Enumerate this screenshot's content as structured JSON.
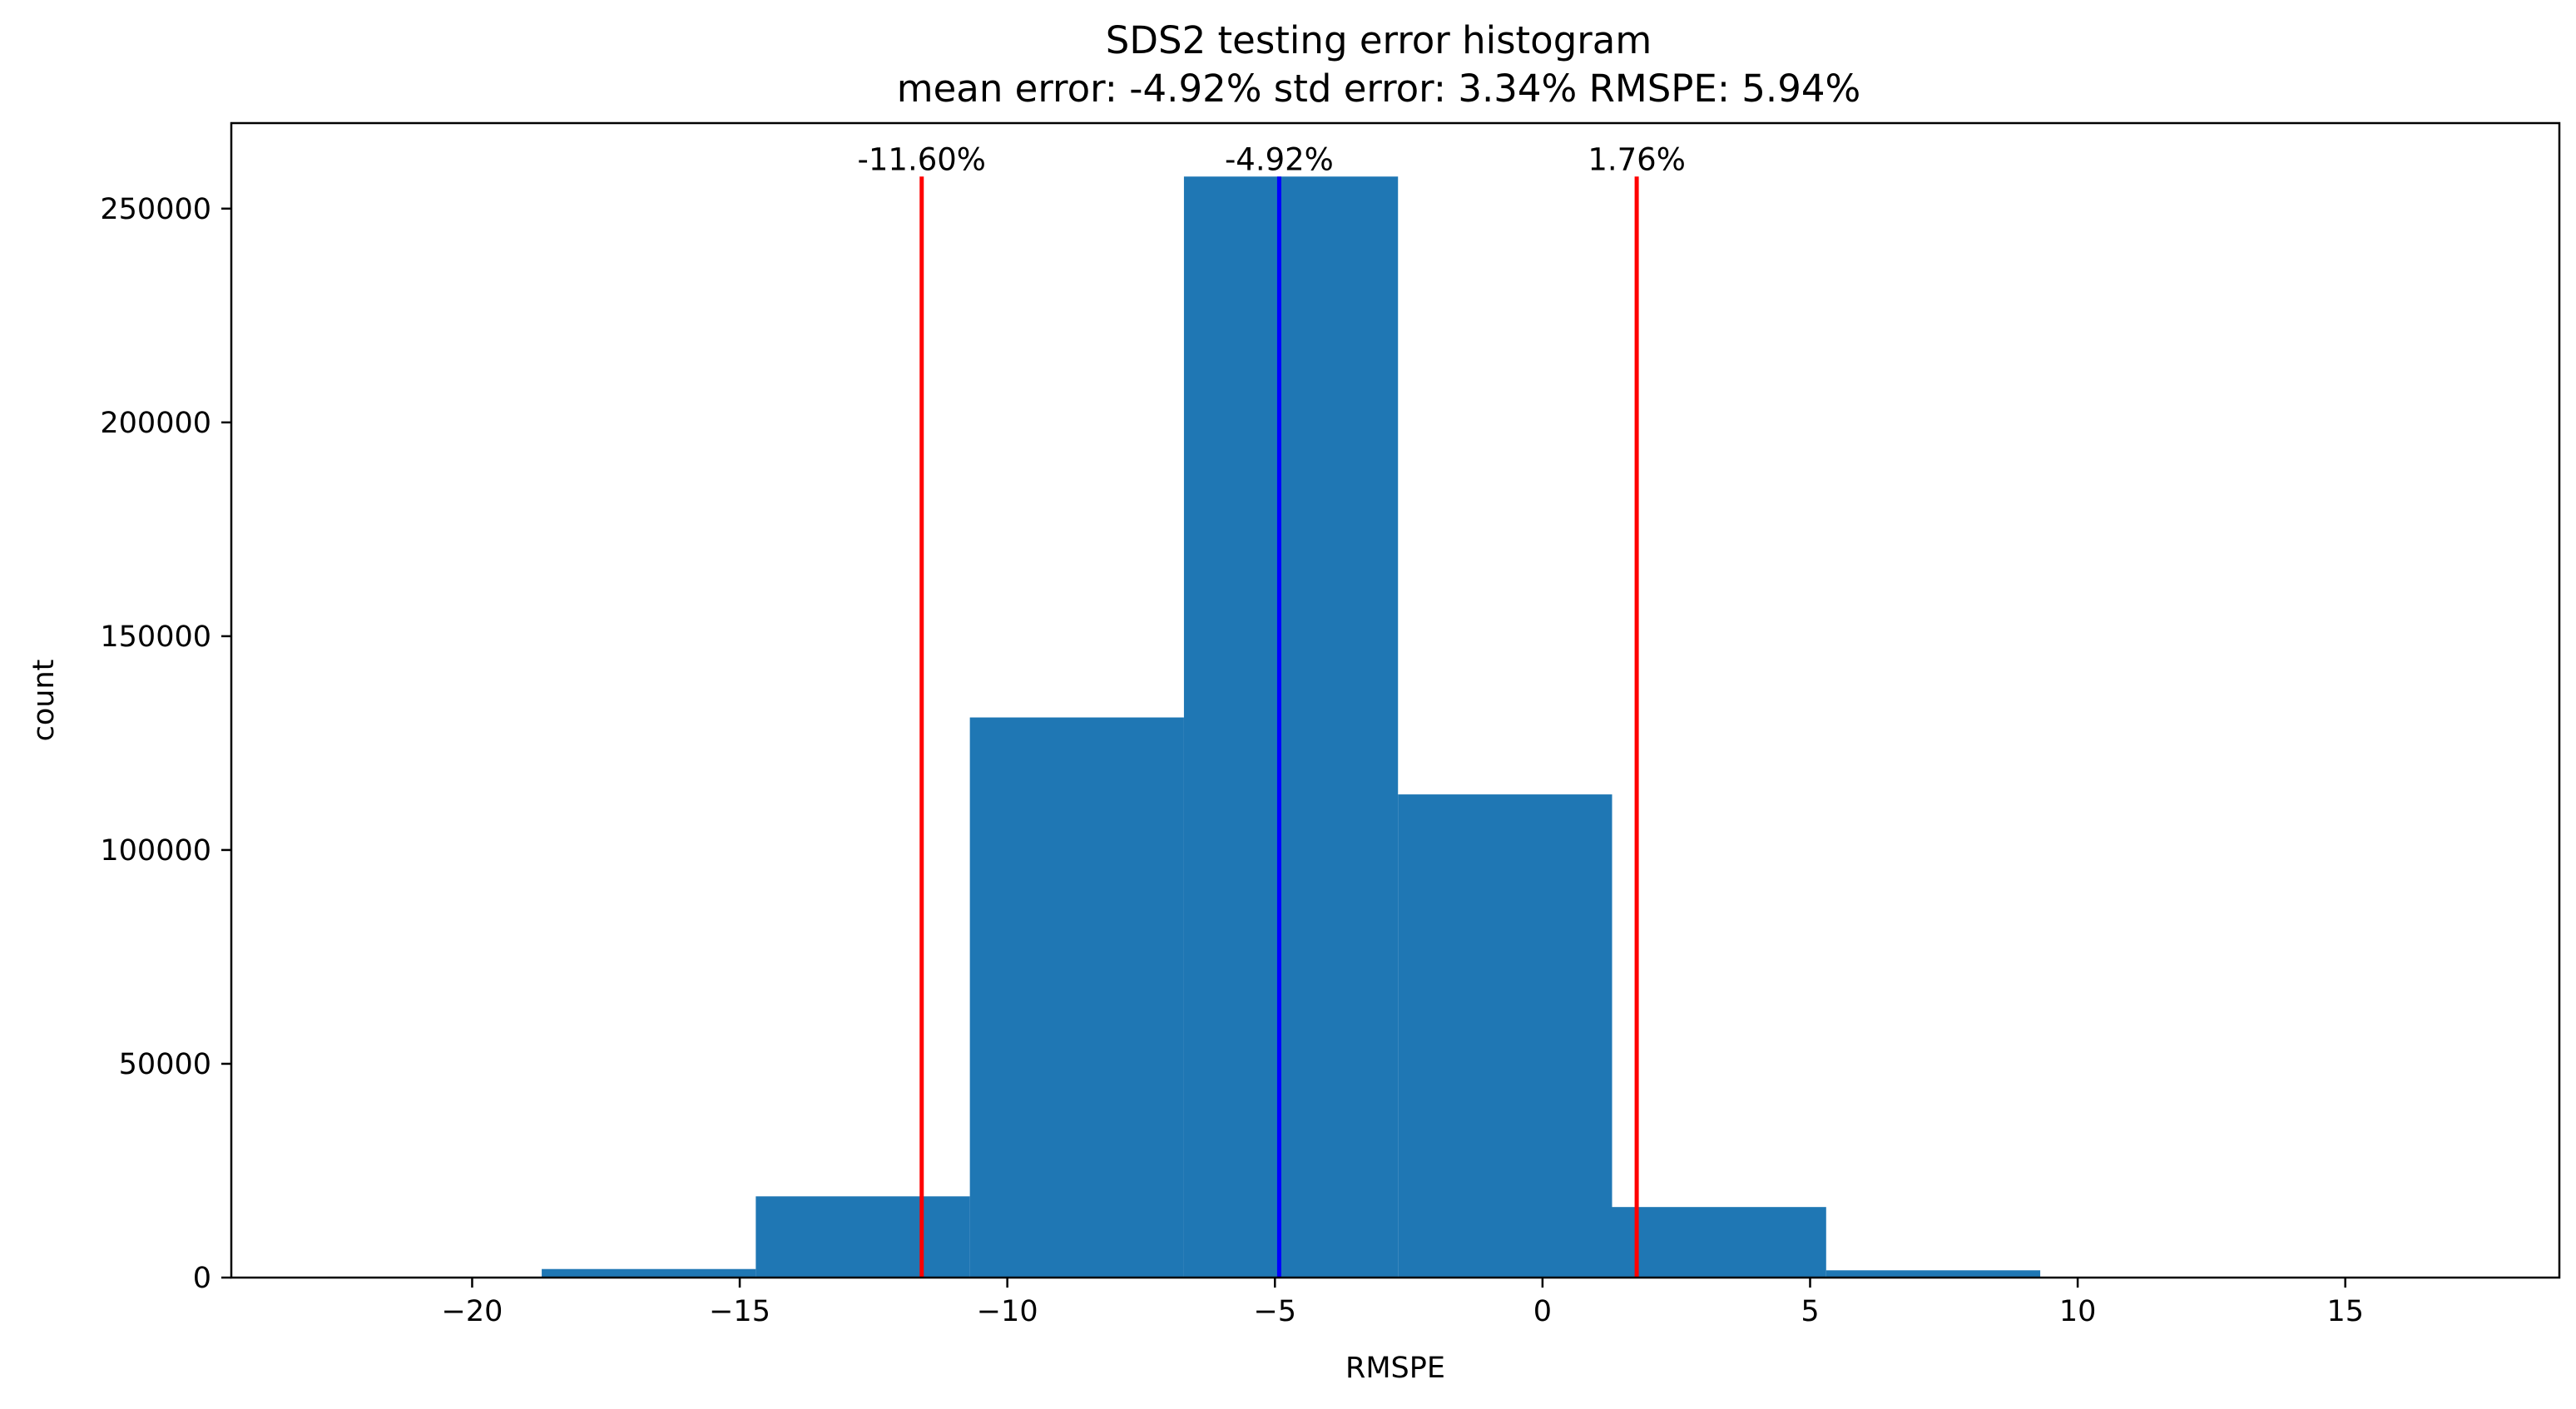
{
  "chart_data": {
    "type": "bar",
    "title": "SDS2 testing error histogram",
    "subtitle": "mean error: -4.92% std error: 3.34% RMSPE: 5.94%",
    "xlabel": "RMSPE",
    "ylabel": "count",
    "xlim": [
      -24.5,
      19.0
    ],
    "ylim": [
      0,
      270000
    ],
    "xticks": [
      -20,
      -15,
      -10,
      -5,
      0,
      5,
      10,
      15
    ],
    "xtick_labels": [
      "−20",
      "−15",
      "−10",
      "−5",
      "0",
      "5",
      "10",
      "15"
    ],
    "yticks": [
      0,
      50000,
      100000,
      150000,
      200000,
      250000
    ],
    "ytick_labels": [
      "0",
      "50000",
      "100000",
      "150000",
      "200000",
      "250000"
    ],
    "bar_color": "#1f77b4",
    "bins": [
      {
        "x0": -22.7,
        "x1": -18.7,
        "count": 200
      },
      {
        "x0": -18.7,
        "x1": -14.7,
        "count": 2000
      },
      {
        "x0": -14.7,
        "x1": -10.7,
        "count": 19000
      },
      {
        "x0": -10.7,
        "x1": -6.7,
        "count": 131000
      },
      {
        "x0": -6.7,
        "x1": -2.7,
        "count": 257500
      },
      {
        "x0": -2.7,
        "x1": 1.3,
        "count": 113000
      },
      {
        "x0": 1.3,
        "x1": 5.3,
        "count": 16500
      },
      {
        "x0": 5.3,
        "x1": 9.3,
        "count": 1700
      },
      {
        "x0": 9.3,
        "x1": 13.3,
        "count": 150
      },
      {
        "x0": 13.3,
        "x1": 17.3,
        "count": 20
      }
    ],
    "vlines": [
      {
        "x": -11.6,
        "label": "-11.60%",
        "color": "#ff0000"
      },
      {
        "x": -4.92,
        "label": "-4.92%",
        "color": "#0000ff"
      },
      {
        "x": 1.76,
        "label": "1.76%",
        "color": "#ff0000"
      }
    ],
    "vline_top": 257500,
    "grid": false,
    "legend": "none"
  }
}
